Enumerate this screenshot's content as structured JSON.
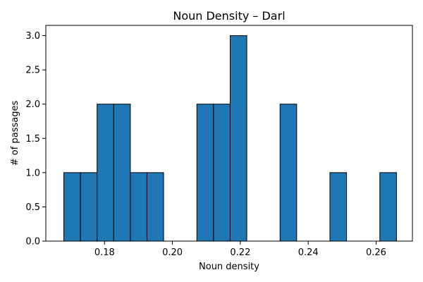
{
  "chart_data": {
    "type": "bar",
    "subtype": "histogram",
    "title": "Noun Density – Darl",
    "xlabel": "Noun density",
    "ylabel": "# of passages",
    "xlim": [
      0.1627,
      0.2707
    ],
    "ylim": [
      0,
      3.15
    ],
    "x_ticks": [
      {
        "value": 0.18,
        "label": "0.18"
      },
      {
        "value": 0.2,
        "label": "0.20"
      },
      {
        "value": 0.22,
        "label": "0.22"
      },
      {
        "value": 0.24,
        "label": "0.24"
      },
      {
        "value": 0.26,
        "label": "0.26"
      }
    ],
    "y_ticks": [
      {
        "value": 0.0,
        "label": "0.0"
      },
      {
        "value": 0.5,
        "label": "0.5"
      },
      {
        "value": 1.0,
        "label": "1.0"
      },
      {
        "value": 1.5,
        "label": "1.5"
      },
      {
        "value": 2.0,
        "label": "2.0"
      },
      {
        "value": 2.5,
        "label": "2.5"
      },
      {
        "value": 3.0,
        "label": "3.0"
      }
    ],
    "bin_edges": [
      0.168,
      0.1729,
      0.1778,
      0.1827,
      0.1876,
      0.1925,
      0.1974,
      0.2023,
      0.2072,
      0.2121,
      0.217,
      0.2219,
      0.2268,
      0.2317,
      0.2366,
      0.2415,
      0.2464,
      0.2513,
      0.2562,
      0.2611,
      0.266
    ],
    "counts": [
      1,
      1,
      2,
      2,
      1,
      1,
      0,
      0,
      2,
      2,
      3,
      0,
      0,
      2,
      0,
      0,
      1,
      0,
      0,
      1
    ],
    "bar_color": "#1f77b4",
    "edge_color": "#000000",
    "grid": false
  }
}
